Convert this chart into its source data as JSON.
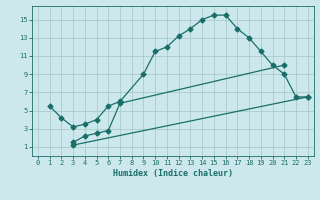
{
  "xlabel": "Humidex (Indice chaleur)",
  "ylabel": "",
  "bg_color": "#cce8ec",
  "grid_color": "#aacccc",
  "line_color": "#1a6e6a",
  "xlim": [
    -0.5,
    23.5
  ],
  "ylim": [
    0,
    16.5
  ],
  "xticks": [
    0,
    1,
    2,
    3,
    4,
    5,
    6,
    7,
    8,
    9,
    10,
    11,
    12,
    13,
    14,
    15,
    16,
    17,
    18,
    19,
    20,
    21,
    22,
    23
  ],
  "yticks": [
    1,
    3,
    5,
    7,
    9,
    11,
    13,
    15
  ],
  "curve1_x": [
    1,
    2,
    3,
    4,
    5,
    6,
    7,
    9,
    10,
    11,
    12,
    13,
    14,
    15,
    16,
    17,
    18,
    19,
    20,
    21,
    22,
    23
  ],
  "curve1_y": [
    5.5,
    4.2,
    3.2,
    3.5,
    4.0,
    5.5,
    6.0,
    9.0,
    11.5,
    12.0,
    13.2,
    14.0,
    15.0,
    15.5,
    15.5,
    14.0,
    13.0,
    11.5,
    10.0,
    9.0,
    6.5,
    6.5
  ],
  "curve2_x": [
    3,
    23
  ],
  "curve2_y": [
    1.2,
    6.5
  ],
  "curve3_x": [
    3,
    4,
    5,
    6,
    7,
    21
  ],
  "curve3_y": [
    1.5,
    2.2,
    2.5,
    2.8,
    5.8,
    10.0
  ],
  "marker": "D",
  "markersize": 2.5,
  "tick_fontsize": 5.0,
  "xlabel_fontsize": 6.0
}
